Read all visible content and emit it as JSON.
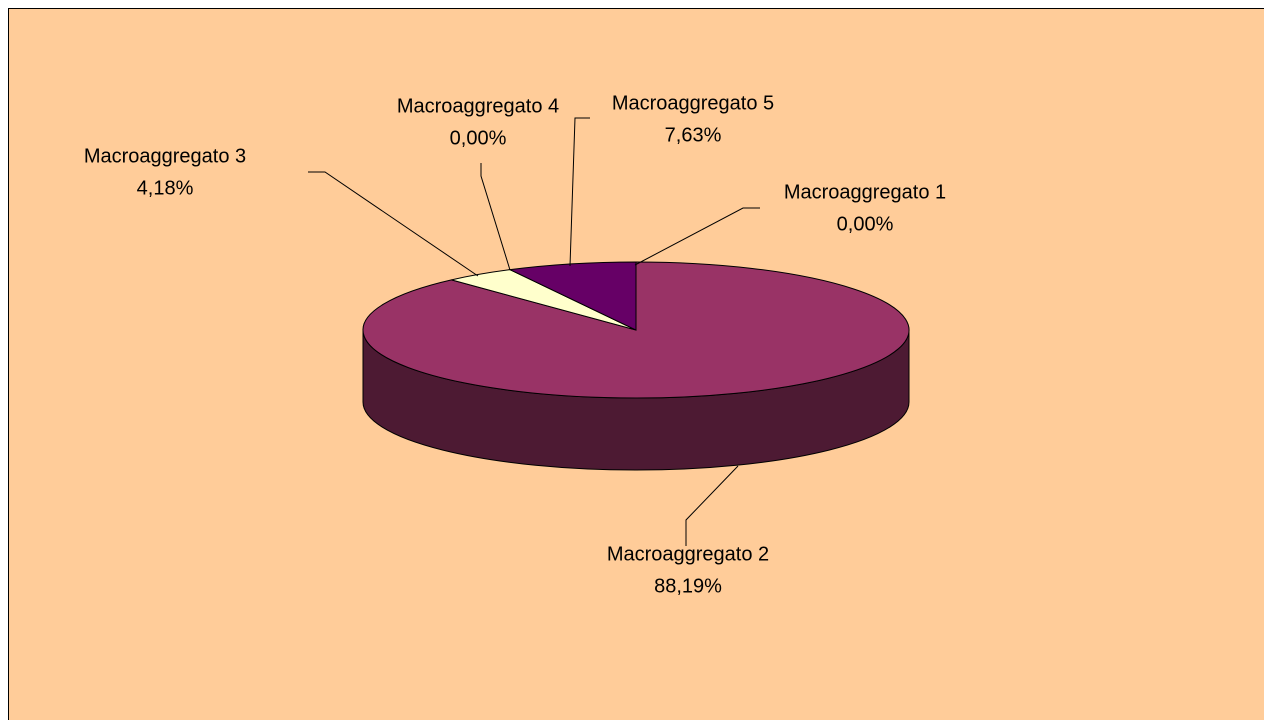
{
  "chart_data": {
    "type": "pie3d",
    "categories": [
      "Macroaggregato 1",
      "Macroaggregato 2",
      "Macroaggregato 3",
      "Macroaggregato 4",
      "Macroaggregato 5"
    ],
    "values": [
      0,
      88.19,
      4.18,
      0,
      7.63
    ],
    "value_labels": [
      "0,00%",
      "88,19%",
      "4,18%",
      "0,00%",
      "7,63%"
    ],
    "colors": [
      "#9999ff",
      "#993366",
      "#ffffcc",
      "#ccffff",
      "#660066"
    ],
    "background": "#ffcc99"
  }
}
